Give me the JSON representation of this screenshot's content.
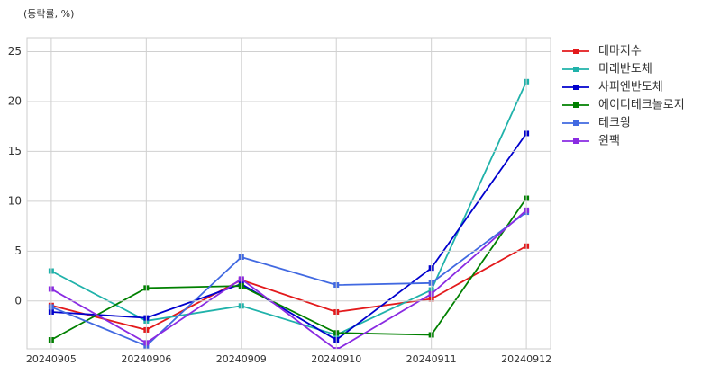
{
  "chart_data": {
    "type": "line",
    "title": "(등락률, %)",
    "categories": [
      "20240905",
      "20240906",
      "20240909",
      "20240910",
      "20240911",
      "20240912"
    ],
    "series": [
      {
        "name": "테마지수",
        "color": "#e31a1c",
        "values": [
          -0.45,
          -2.9,
          2.1,
          -1.1,
          0.2,
          5.5
        ]
      },
      {
        "name": "미래반도체",
        "color": "#20b2aa",
        "values": [
          3.0,
          -2.0,
          -0.5,
          -3.4,
          1.1,
          22.0
        ]
      },
      {
        "name": "사피엔반도체",
        "color": "#0000cd",
        "values": [
          -1.1,
          -1.7,
          1.7,
          -3.9,
          3.3,
          16.8
        ]
      },
      {
        "name": "에이디테크놀로지",
        "color": "#008000",
        "values": [
          -3.9,
          1.3,
          1.5,
          -3.2,
          -3.4,
          10.3
        ]
      },
      {
        "name": "테크윙",
        "color": "#4169e1",
        "values": [
          -0.6,
          -4.5,
          4.4,
          1.6,
          1.8,
          8.9
        ]
      },
      {
        "name": "윈팩",
        "color": "#8a2be2",
        "values": [
          1.2,
          -4.2,
          2.2,
          -4.9,
          0.7,
          9.1
        ]
      }
    ],
    "ylim": [
      -4.8,
      26.4
    ],
    "yticks": [
      0,
      5,
      10,
      15,
      20,
      25
    ],
    "grid": true,
    "legend": "outside-right"
  }
}
